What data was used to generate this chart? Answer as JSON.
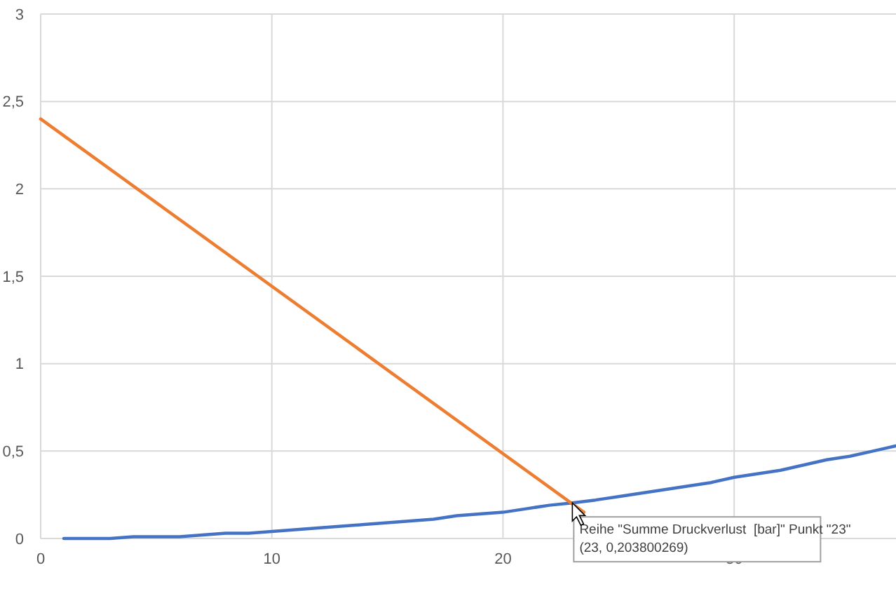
{
  "chart_data": {
    "type": "line",
    "xlim": [
      0,
      37
    ],
    "xticks": [
      0,
      10,
      20,
      30
    ],
    "ylim": [
      0,
      3
    ],
    "yticks": [
      0,
      {
        "value": 0.5,
        "label": "0,5"
      },
      1,
      {
        "value": 1.5,
        "label": "1,5"
      },
      2,
      {
        "value": 2.5,
        "label": "2,5"
      },
      3
    ],
    "grid": true,
    "marker": "none",
    "line_style": "solid",
    "series": [
      {
        "color": "#4472c4",
        "x": [
          1,
          2,
          3,
          4,
          5,
          6,
          7,
          8,
          9,
          10,
          11,
          12,
          13,
          14,
          15,
          16,
          17,
          18,
          19,
          20,
          21,
          22,
          23,
          24,
          25,
          26,
          27,
          28,
          29,
          30,
          31,
          32,
          33,
          34,
          35,
          36,
          37
        ],
        "values": [
          0,
          0,
          0,
          0.01,
          0.01,
          0.01,
          0.02,
          0.03,
          0.03,
          0.04,
          0.05,
          0.06,
          0.07,
          0.08,
          0.09,
          0.1,
          0.11,
          0.13,
          0.14,
          0.15,
          0.17,
          0.19,
          0.2038,
          0.22,
          0.24,
          0.26,
          0.28,
          0.3,
          0.32,
          0.35,
          0.37,
          0.39,
          0.42,
          0.45,
          0.47,
          0.5,
          0.53
        ]
      },
      {
        "color": "#ed7d31",
        "x": [
          0,
          23.5
        ],
        "values": [
          2.4,
          0.15
        ]
      }
    ],
    "annotations": [
      {
        "text": "Reihe \"Summe Druckverlust  [bar]\" Punkt \"23\"\n(23, 0,203800269)",
        "x": 23,
        "y": 0.2038
      }
    ]
  }
}
